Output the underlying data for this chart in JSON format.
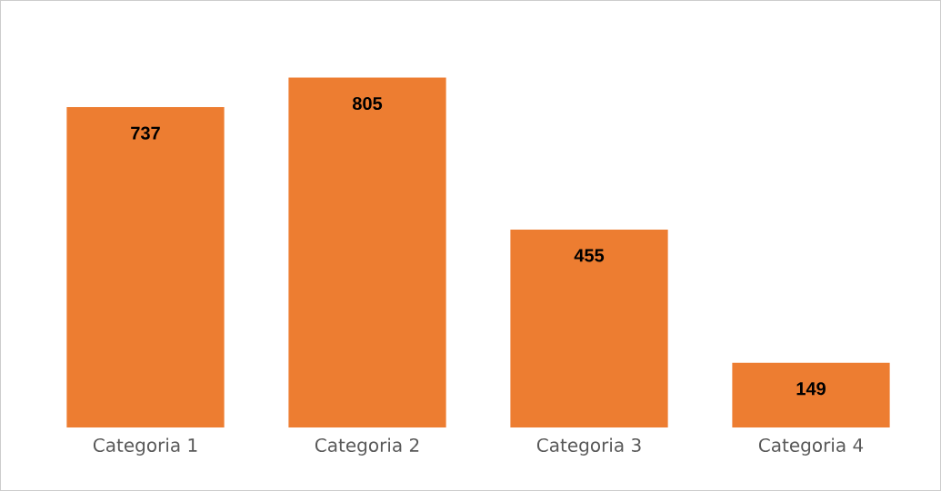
{
  "chart_data": {
    "type": "bar",
    "categories": [
      "Categoria 1",
      "Categoria 2",
      "Categoria 3",
      "Categoria 4"
    ],
    "values": [
      737,
      805,
      455,
      149
    ],
    "color": "#ed7d31",
    "tick_labels": "x",
    "data_labels": true
  }
}
